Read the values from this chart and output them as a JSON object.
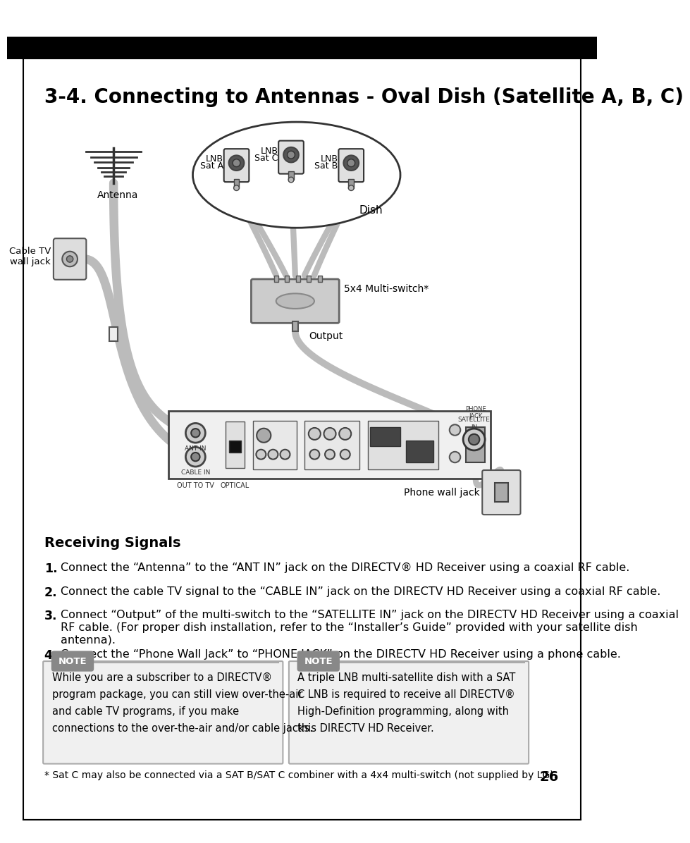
{
  "title": "3-4. Connecting to Antennas - Oval Dish (Satellite A, B, C)",
  "page_number": "26",
  "background_color": "#ffffff",
  "border_color": "#000000",
  "header_bar_color": "#000000",
  "section_heading": "Receiving Signals",
  "instructions": [
    {
      "num": "1.",
      "text": "Connect the “Antenna” to the “ANT IN” jack on the DIRECTV® HD Receiver using a coaxial RF cable."
    },
    {
      "num": "2.",
      "text": "Connect the cable TV signal to the “CABLE IN” jack on the DIRECTV HD Receiver using a coaxial RF cable."
    },
    {
      "num": "3.",
      "text": "Connect “Output” of the multi-switch to the “SATELLITE IN” jack on the DIRECTV HD Receiver using a coaxial RF cable. (For proper dish installation, refer to the “Installer’s Guide” provided with your satellite dish antenna)."
    },
    {
      "num": "4.",
      "text": "Connect the “Phone Wall Jack” to “PHONE JACK” on the DIRECTV HD Receiver using a phone cable."
    }
  ],
  "note1_text": "While you are a subscriber to a DIRECTV®\nprogram package, you can still view over-the-air\nand cable TV programs, if you make\nconnections to the over-the-air and/or cable jacks.",
  "note2_text": "A triple LNB multi-satellite dish with a SAT\nC LNB is required to receive all DIRECTV®\nHigh-Definition programming, along with\nthis DIRECTV HD Receiver.",
  "footnote": "* Sat C may also be connected via a SAT B/SAT C combiner with a 4x4 multi-switch (not supplied by LG).",
  "note_bg": "#f0f0f0",
  "note_border": "#aaaaaa",
  "note_label_bg": "#888888",
  "note_label_color": "#ffffff",
  "diagram_labels": {
    "lnb_sat_a": "LNB\nSat A",
    "lnb_sat_c": "LNB\nSat C",
    "lnb_sat_b": "LNB\nSat B",
    "dish": "Dish",
    "multiswitch": "5x4 Multi-switch*",
    "output": "Output",
    "antenna": "Antenna",
    "cable_tv": "Cable TV\nwall jack",
    "phone_wall": "Phone wall jack"
  },
  "wire_color": "#bbbbbb",
  "wire_color_dark": "#999999"
}
